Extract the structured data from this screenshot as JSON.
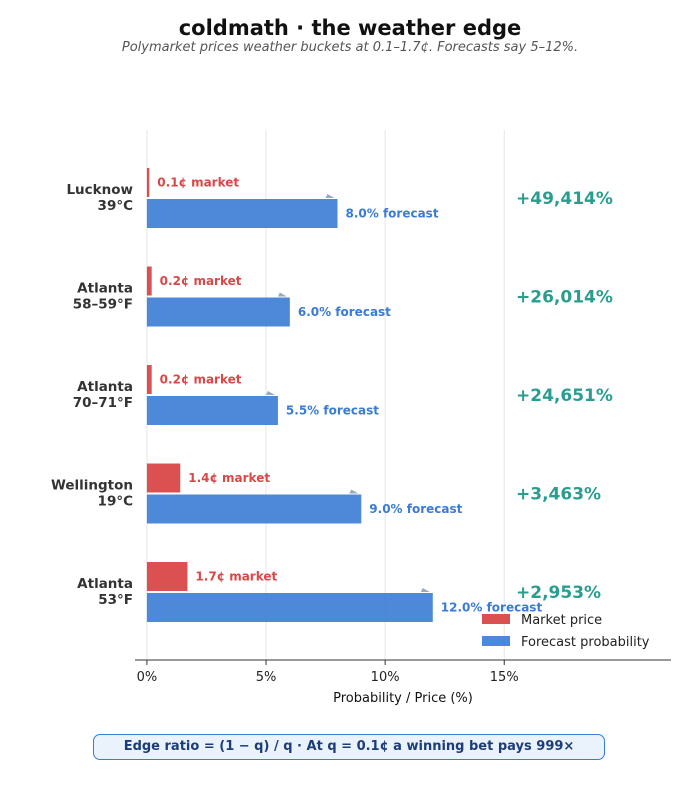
{
  "header": {
    "title": "coldmath  ·  the weather edge",
    "subtitle": "Polymarket prices weather buckets at 0.1–1.7¢.  Forecasts say 5–12%."
  },
  "colors": {
    "market": "#d94848",
    "forecast": "#3a7bd5",
    "edge": "#2a9d8f",
    "grid": "#e6e6e6",
    "axis": "#333333"
  },
  "footer": {
    "text": "Edge ratio  =  (1 − q) / q  ·  At q = 0.1¢ a winning bet pays 999×"
  },
  "chart_data": {
    "type": "bar",
    "orientation": "horizontal",
    "title": "coldmath  ·  the weather edge",
    "subtitle": "Polymarket prices weather buckets at 0.1–1.7¢.  Forecasts say 5–12%.",
    "xlabel": "Probability  /  Price  (%)",
    "xlim": [
      -0.5,
      22
    ],
    "xticks": [
      0,
      5,
      10,
      15
    ],
    "xtick_labels": [
      "0%",
      "5%",
      "10%",
      "15%"
    ],
    "grid": true,
    "legend_position": "lower-right",
    "categories": [
      {
        "city": "Lucknow",
        "bucket": "39°C"
      },
      {
        "city": "Atlanta",
        "bucket": "58–59°F"
      },
      {
        "city": "Atlanta",
        "bucket": "70–71°F"
      },
      {
        "city": "Wellington",
        "bucket": "19°C"
      },
      {
        "city": "Atlanta",
        "bucket": "53°F"
      }
    ],
    "series": [
      {
        "name": "Market price",
        "values": [
          0.1,
          0.2,
          0.2,
          1.4,
          1.7
        ],
        "labels": [
          "0.1¢ market",
          "0.2¢ market",
          "0.2¢ market",
          "1.4¢ market",
          "1.7¢ market"
        ]
      },
      {
        "name": "Forecast probability",
        "values": [
          8.0,
          6.0,
          5.5,
          9.0,
          12.0
        ],
        "labels": [
          "8.0% forecast",
          "6.0% forecast",
          "5.5% forecast",
          "9.0% forecast",
          "12.0% forecast"
        ]
      }
    ],
    "edge_labels": [
      "+49,414%",
      "+26,014%",
      "+24,651%",
      "+3,463%",
      "+2,953%"
    ]
  }
}
